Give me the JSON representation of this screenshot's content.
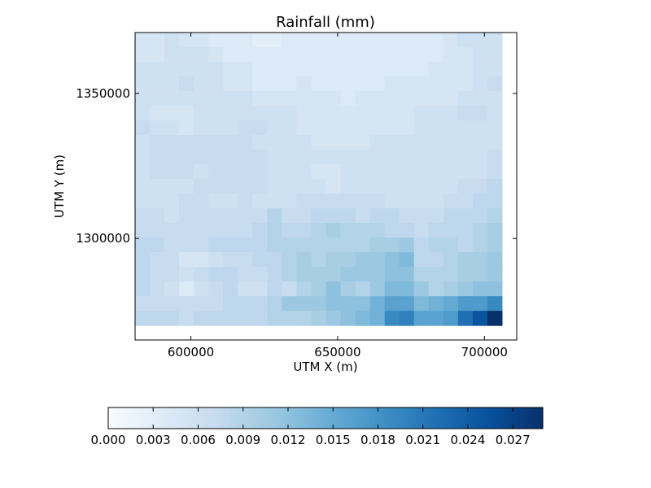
{
  "chart_data": {
    "type": "heatmap",
    "title": "Rainfall (mm)",
    "xlabel": "UTM X (m)",
    "ylabel": "UTM Y (m)",
    "xlim": [
      581000,
      711000
    ],
    "ylim": [
      1265000,
      1371000
    ],
    "x_ticks": [
      600000,
      650000,
      700000
    ],
    "x_tick_labels": [
      "600000",
      "650000",
      "700000"
    ],
    "y_ticks": [
      1300000,
      1350000
    ],
    "y_tick_labels": [
      "1300000",
      "1350000"
    ],
    "grid": false,
    "colormap": "Blues",
    "colors": {
      "low": "#f7fbff",
      "high": "#08306b"
    },
    "cells": {
      "x0": 581000,
      "x1": 706000,
      "y0": 1270000,
      "y1": 1371000,
      "cols": 25,
      "rows": 20,
      "cell_width_m": 5000,
      "cell_height_m": 5050
    },
    "values": [
      [
        0.005,
        0.005,
        0.006,
        0.005,
        0.005,
        0.004,
        0.004,
        0.004,
        0.003,
        0.003,
        0.004,
        0.004,
        0.004,
        0.004,
        0.004,
        0.004,
        0.004,
        0.004,
        0.004,
        0.004,
        0.004,
        0.005,
        0.006,
        0.006,
        0.006
      ],
      [
        0.005,
        0.005,
        0.006,
        0.006,
        0.006,
        0.005,
        0.004,
        0.004,
        0.004,
        0.004,
        0.004,
        0.004,
        0.004,
        0.004,
        0.004,
        0.004,
        0.004,
        0.004,
        0.004,
        0.004,
        0.004,
        0.005,
        0.005,
        0.006,
        0.006
      ],
      [
        0.006,
        0.006,
        0.006,
        0.006,
        0.006,
        0.006,
        0.005,
        0.005,
        0.004,
        0.004,
        0.004,
        0.004,
        0.004,
        0.004,
        0.004,
        0.004,
        0.004,
        0.004,
        0.004,
        0.004,
        0.005,
        0.005,
        0.005,
        0.006,
        0.006
      ],
      [
        0.006,
        0.006,
        0.006,
        0.007,
        0.006,
        0.006,
        0.005,
        0.005,
        0.004,
        0.004,
        0.004,
        0.005,
        0.004,
        0.004,
        0.004,
        0.004,
        0.004,
        0.005,
        0.005,
        0.005,
        0.005,
        0.005,
        0.005,
        0.006,
        0.007
      ],
      [
        0.006,
        0.006,
        0.006,
        0.006,
        0.006,
        0.006,
        0.006,
        0.006,
        0.005,
        0.005,
        0.005,
        0.005,
        0.005,
        0.005,
        0.004,
        0.005,
        0.005,
        0.005,
        0.005,
        0.005,
        0.005,
        0.005,
        0.006,
        0.006,
        0.006
      ],
      [
        0.006,
        0.005,
        0.005,
        0.005,
        0.006,
        0.006,
        0.006,
        0.006,
        0.006,
        0.006,
        0.006,
        0.005,
        0.005,
        0.005,
        0.005,
        0.005,
        0.005,
        0.005,
        0.005,
        0.006,
        0.006,
        0.006,
        0.007,
        0.007,
        0.006
      ],
      [
        0.007,
        0.006,
        0.006,
        0.005,
        0.006,
        0.006,
        0.006,
        0.007,
        0.007,
        0.006,
        0.006,
        0.005,
        0.005,
        0.005,
        0.005,
        0.005,
        0.005,
        0.005,
        0.005,
        0.006,
        0.006,
        0.006,
        0.006,
        0.006,
        0.006
      ],
      [
        0.006,
        0.007,
        0.007,
        0.007,
        0.007,
        0.007,
        0.007,
        0.007,
        0.006,
        0.006,
        0.006,
        0.006,
        0.005,
        0.005,
        0.005,
        0.005,
        0.006,
        0.006,
        0.006,
        0.006,
        0.006,
        0.006,
        0.006,
        0.006,
        0.006
      ],
      [
        0.006,
        0.007,
        0.007,
        0.007,
        0.007,
        0.007,
        0.007,
        0.007,
        0.007,
        0.006,
        0.006,
        0.006,
        0.006,
        0.006,
        0.006,
        0.006,
        0.006,
        0.006,
        0.006,
        0.006,
        0.006,
        0.006,
        0.006,
        0.006,
        0.007
      ],
      [
        0.006,
        0.007,
        0.007,
        0.007,
        0.006,
        0.007,
        0.007,
        0.007,
        0.007,
        0.006,
        0.006,
        0.006,
        0.005,
        0.005,
        0.006,
        0.006,
        0.006,
        0.006,
        0.006,
        0.006,
        0.006,
        0.006,
        0.006,
        0.006,
        0.007
      ],
      [
        0.006,
        0.006,
        0.006,
        0.006,
        0.007,
        0.007,
        0.007,
        0.007,
        0.007,
        0.006,
        0.006,
        0.006,
        0.006,
        0.005,
        0.006,
        0.006,
        0.006,
        0.006,
        0.006,
        0.006,
        0.006,
        0.006,
        0.007,
        0.007,
        0.008
      ],
      [
        0.006,
        0.006,
        0.006,
        0.007,
        0.007,
        0.006,
        0.006,
        0.007,
        0.006,
        0.006,
        0.006,
        0.007,
        0.007,
        0.007,
        0.007,
        0.007,
        0.007,
        0.006,
        0.006,
        0.006,
        0.006,
        0.007,
        0.007,
        0.008,
        0.008
      ],
      [
        0.007,
        0.007,
        0.006,
        0.007,
        0.007,
        0.007,
        0.007,
        0.007,
        0.007,
        0.009,
        0.007,
        0.007,
        0.008,
        0.008,
        0.008,
        0.007,
        0.008,
        0.008,
        0.007,
        0.007,
        0.007,
        0.008,
        0.008,
        0.008,
        0.009
      ],
      [
        0.007,
        0.007,
        0.007,
        0.007,
        0.007,
        0.007,
        0.007,
        0.007,
        0.008,
        0.009,
        0.008,
        0.008,
        0.009,
        0.01,
        0.009,
        0.009,
        0.009,
        0.008,
        0.008,
        0.007,
        0.008,
        0.008,
        0.008,
        0.009,
        0.01
      ],
      [
        0.008,
        0.008,
        0.007,
        0.007,
        0.007,
        0.008,
        0.008,
        0.008,
        0.008,
        0.009,
        0.009,
        0.009,
        0.009,
        0.009,
        0.009,
        0.009,
        0.01,
        0.01,
        0.011,
        0.008,
        0.009,
        0.009,
        0.008,
        0.009,
        0.01
      ],
      [
        0.008,
        0.007,
        0.007,
        0.005,
        0.005,
        0.006,
        0.007,
        0.007,
        0.008,
        0.008,
        0.009,
        0.01,
        0.009,
        0.01,
        0.01,
        0.011,
        0.011,
        0.012,
        0.013,
        0.008,
        0.008,
        0.009,
        0.01,
        0.01,
        0.011
      ],
      [
        0.008,
        0.007,
        0.007,
        0.006,
        0.007,
        0.008,
        0.008,
        0.007,
        0.007,
        0.008,
        0.009,
        0.01,
        0.01,
        0.01,
        0.011,
        0.011,
        0.011,
        0.012,
        0.012,
        0.009,
        0.009,
        0.009,
        0.01,
        0.01,
        0.011
      ],
      [
        0.008,
        0.007,
        0.006,
        0.004,
        0.006,
        0.007,
        0.008,
        0.006,
        0.006,
        0.008,
        0.007,
        0.009,
        0.01,
        0.012,
        0.01,
        0.009,
        0.011,
        0.013,
        0.013,
        0.011,
        0.009,
        0.01,
        0.011,
        0.012,
        0.012
      ],
      [
        0.007,
        0.007,
        0.007,
        0.007,
        0.007,
        0.007,
        0.008,
        0.008,
        0.008,
        0.009,
        0.011,
        0.011,
        0.011,
        0.012,
        0.012,
        0.012,
        0.014,
        0.016,
        0.016,
        0.013,
        0.014,
        0.015,
        0.017,
        0.017,
        0.019
      ],
      [
        0.008,
        0.008,
        0.008,
        0.007,
        0.008,
        0.008,
        0.008,
        0.008,
        0.008,
        0.009,
        0.009,
        0.009,
        0.01,
        0.011,
        0.012,
        0.013,
        0.014,
        0.019,
        0.02,
        0.016,
        0.016,
        0.017,
        0.022,
        0.025,
        0.029
      ]
    ],
    "colorbar": {
      "range": [
        0,
        0.029
      ],
      "orientation": "horizontal",
      "ticks": [
        0.0,
        0.003,
        0.006,
        0.009,
        0.012,
        0.015,
        0.018,
        0.021,
        0.024,
        0.027
      ],
      "tick_labels": [
        "0.000",
        "0.003",
        "0.006",
        "0.009",
        "0.012",
        "0.015",
        "0.018",
        "0.021",
        "0.024",
        "0.027"
      ]
    }
  }
}
